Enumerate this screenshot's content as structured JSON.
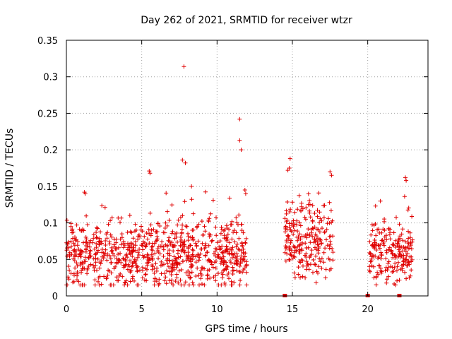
{
  "chart_data": {
    "type": "scatter",
    "title": "Day 262 of 2021, SRMTID for receiver wtzr",
    "xlabel": "GPS time / hours",
    "ylabel": "SRMTID / TECUs",
    "xlim": [
      0,
      24
    ],
    "ylim": [
      0,
      0.35
    ],
    "xticks": [
      0,
      5,
      10,
      15,
      20
    ],
    "xtick_labels": [
      "0",
      "5",
      "10",
      "15",
      "20"
    ],
    "yticks": [
      0,
      0.05,
      0.1,
      0.15,
      0.2,
      0.25,
      0.3,
      0.35
    ],
    "ytick_labels": [
      "0",
      "0.05",
      "0.1",
      "0.15",
      "0.2",
      "0.25",
      "0.3",
      "0.35"
    ],
    "grid": true,
    "marker": "plus",
    "color": "#e00000",
    "data_segments": [
      {
        "x_range": [
          0.0,
          12.0
        ],
        "y_center": 0.055,
        "y_spread": 0.045
      },
      {
        "x_range": [
          14.5,
          17.7
        ],
        "y_center": 0.075,
        "y_spread": 0.05
      },
      {
        "x_range": [
          20.1,
          23.0
        ],
        "y_center": 0.06,
        "y_spread": 0.04
      }
    ],
    "notable_points": [
      {
        "x": 7.8,
        "y": 0.314
      },
      {
        "x": 11.5,
        "y": 0.242
      },
      {
        "x": 11.5,
        "y": 0.213
      },
      {
        "x": 11.6,
        "y": 0.2
      },
      {
        "x": 7.7,
        "y": 0.186
      },
      {
        "x": 7.9,
        "y": 0.182
      },
      {
        "x": 14.85,
        "y": 0.188
      },
      {
        "x": 14.8,
        "y": 0.175
      },
      {
        "x": 14.7,
        "y": 0.172
      },
      {
        "x": 5.5,
        "y": 0.171
      },
      {
        "x": 5.55,
        "y": 0.168
      },
      {
        "x": 17.5,
        "y": 0.17
      },
      {
        "x": 17.6,
        "y": 0.165
      },
      {
        "x": 22.5,
        "y": 0.162
      },
      {
        "x": 22.55,
        "y": 0.158
      },
      {
        "x": 8.3,
        "y": 0.15
      },
      {
        "x": 11.85,
        "y": 0.145
      },
      {
        "x": 11.9,
        "y": 0.14
      },
      {
        "x": 1.2,
        "y": 0.142
      },
      {
        "x": 1.25,
        "y": 0.14
      },
      {
        "x": 22.45,
        "y": 0.136
      }
    ],
    "zero_markers_x": [
      14.5,
      20.0,
      22.1
    ]
  }
}
